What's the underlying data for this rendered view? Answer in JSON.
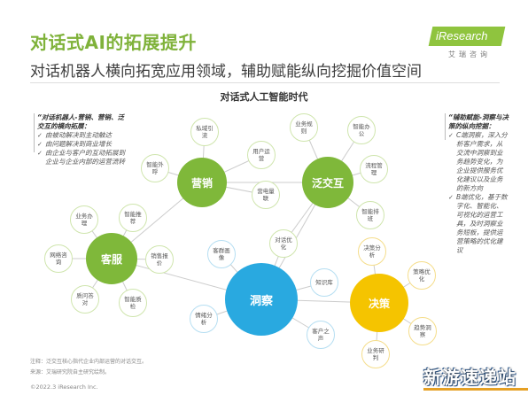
{
  "header": {
    "title": "对话式AI的拓展提升",
    "subtitle": "对话机器人横向拓宽应用领域，辅助赋能纵向挖掘价值空间"
  },
  "logo": {
    "name": "iResearch",
    "sub": "艾瑞咨询"
  },
  "diagram": {
    "title": "对话式人工智能时代",
    "hubs": {
      "marketing": "营销",
      "interaction": "泛交互",
      "service": "客服",
      "insight": "洞察",
      "decision": "决策"
    },
    "satellites": {
      "private_traffic": "私域引流",
      "user_ops": "用户运营",
      "smart_outbound": "智能外呼",
      "elec_ad": "营电量联",
      "biz_assist": "业务办理",
      "smart_push": "智能推荐",
      "network_consult": "网络咨询",
      "sales_quote": "销售报价",
      "smart_qa": "智能质检",
      "qa_pairs": "质问答对",
      "customer_profile": "客群画像",
      "info_search": "信息检索",
      "sentiment": "情绪分析",
      "knowledge_base": "知识库",
      "dialog_opt": "对话优化",
      "trend_insight": "趋势洞察",
      "customer_voice": "客户之声",
      "biz_forecast": "业务预测",
      "decision_analysis": "决策分析",
      "strategy_opt": "策略优化",
      "biz_research": "业务研判",
      "biz_rules": "业务规则",
      "flow_mgmt": "流程管理",
      "smart_schedule": "智能排班",
      "smart_office": "智能办公"
    }
  },
  "left_note": {
    "heading": "“对话机器人-营销、营销、泛交互的横向拓展：",
    "items": [
      "由被动解决到主动触达",
      "由问题解决到商业增长",
      "由企业与客户的互动拓展到企业与企业内部的运营流转"
    ]
  },
  "right_note": {
    "heading": "“辅助赋能-洞察与决策的纵向挖掘：",
    "items": [
      "C端洞察，深入分析客户需求，从交流中洞察到业务趋势变化，为企业提供服务优化建议以及业务的新方向",
      "B端优化，基于数字化、智能化、可视化的运营工具，及时洞察业务短板，提供运营策略的优化建议"
    ]
  },
  "footnote": "注释：泛交互核心指代企业内部运营的对话交互。",
  "source": "来源：艾瑞研究院自主研究绘制。",
  "copyright": "©2022.3 iResearch Inc.",
  "watermark": "新游速递站",
  "colors": {
    "green": "#7fb83a",
    "blue": "#29a9e0",
    "yellow": "#f5c400",
    "link": "#cccccc"
  }
}
